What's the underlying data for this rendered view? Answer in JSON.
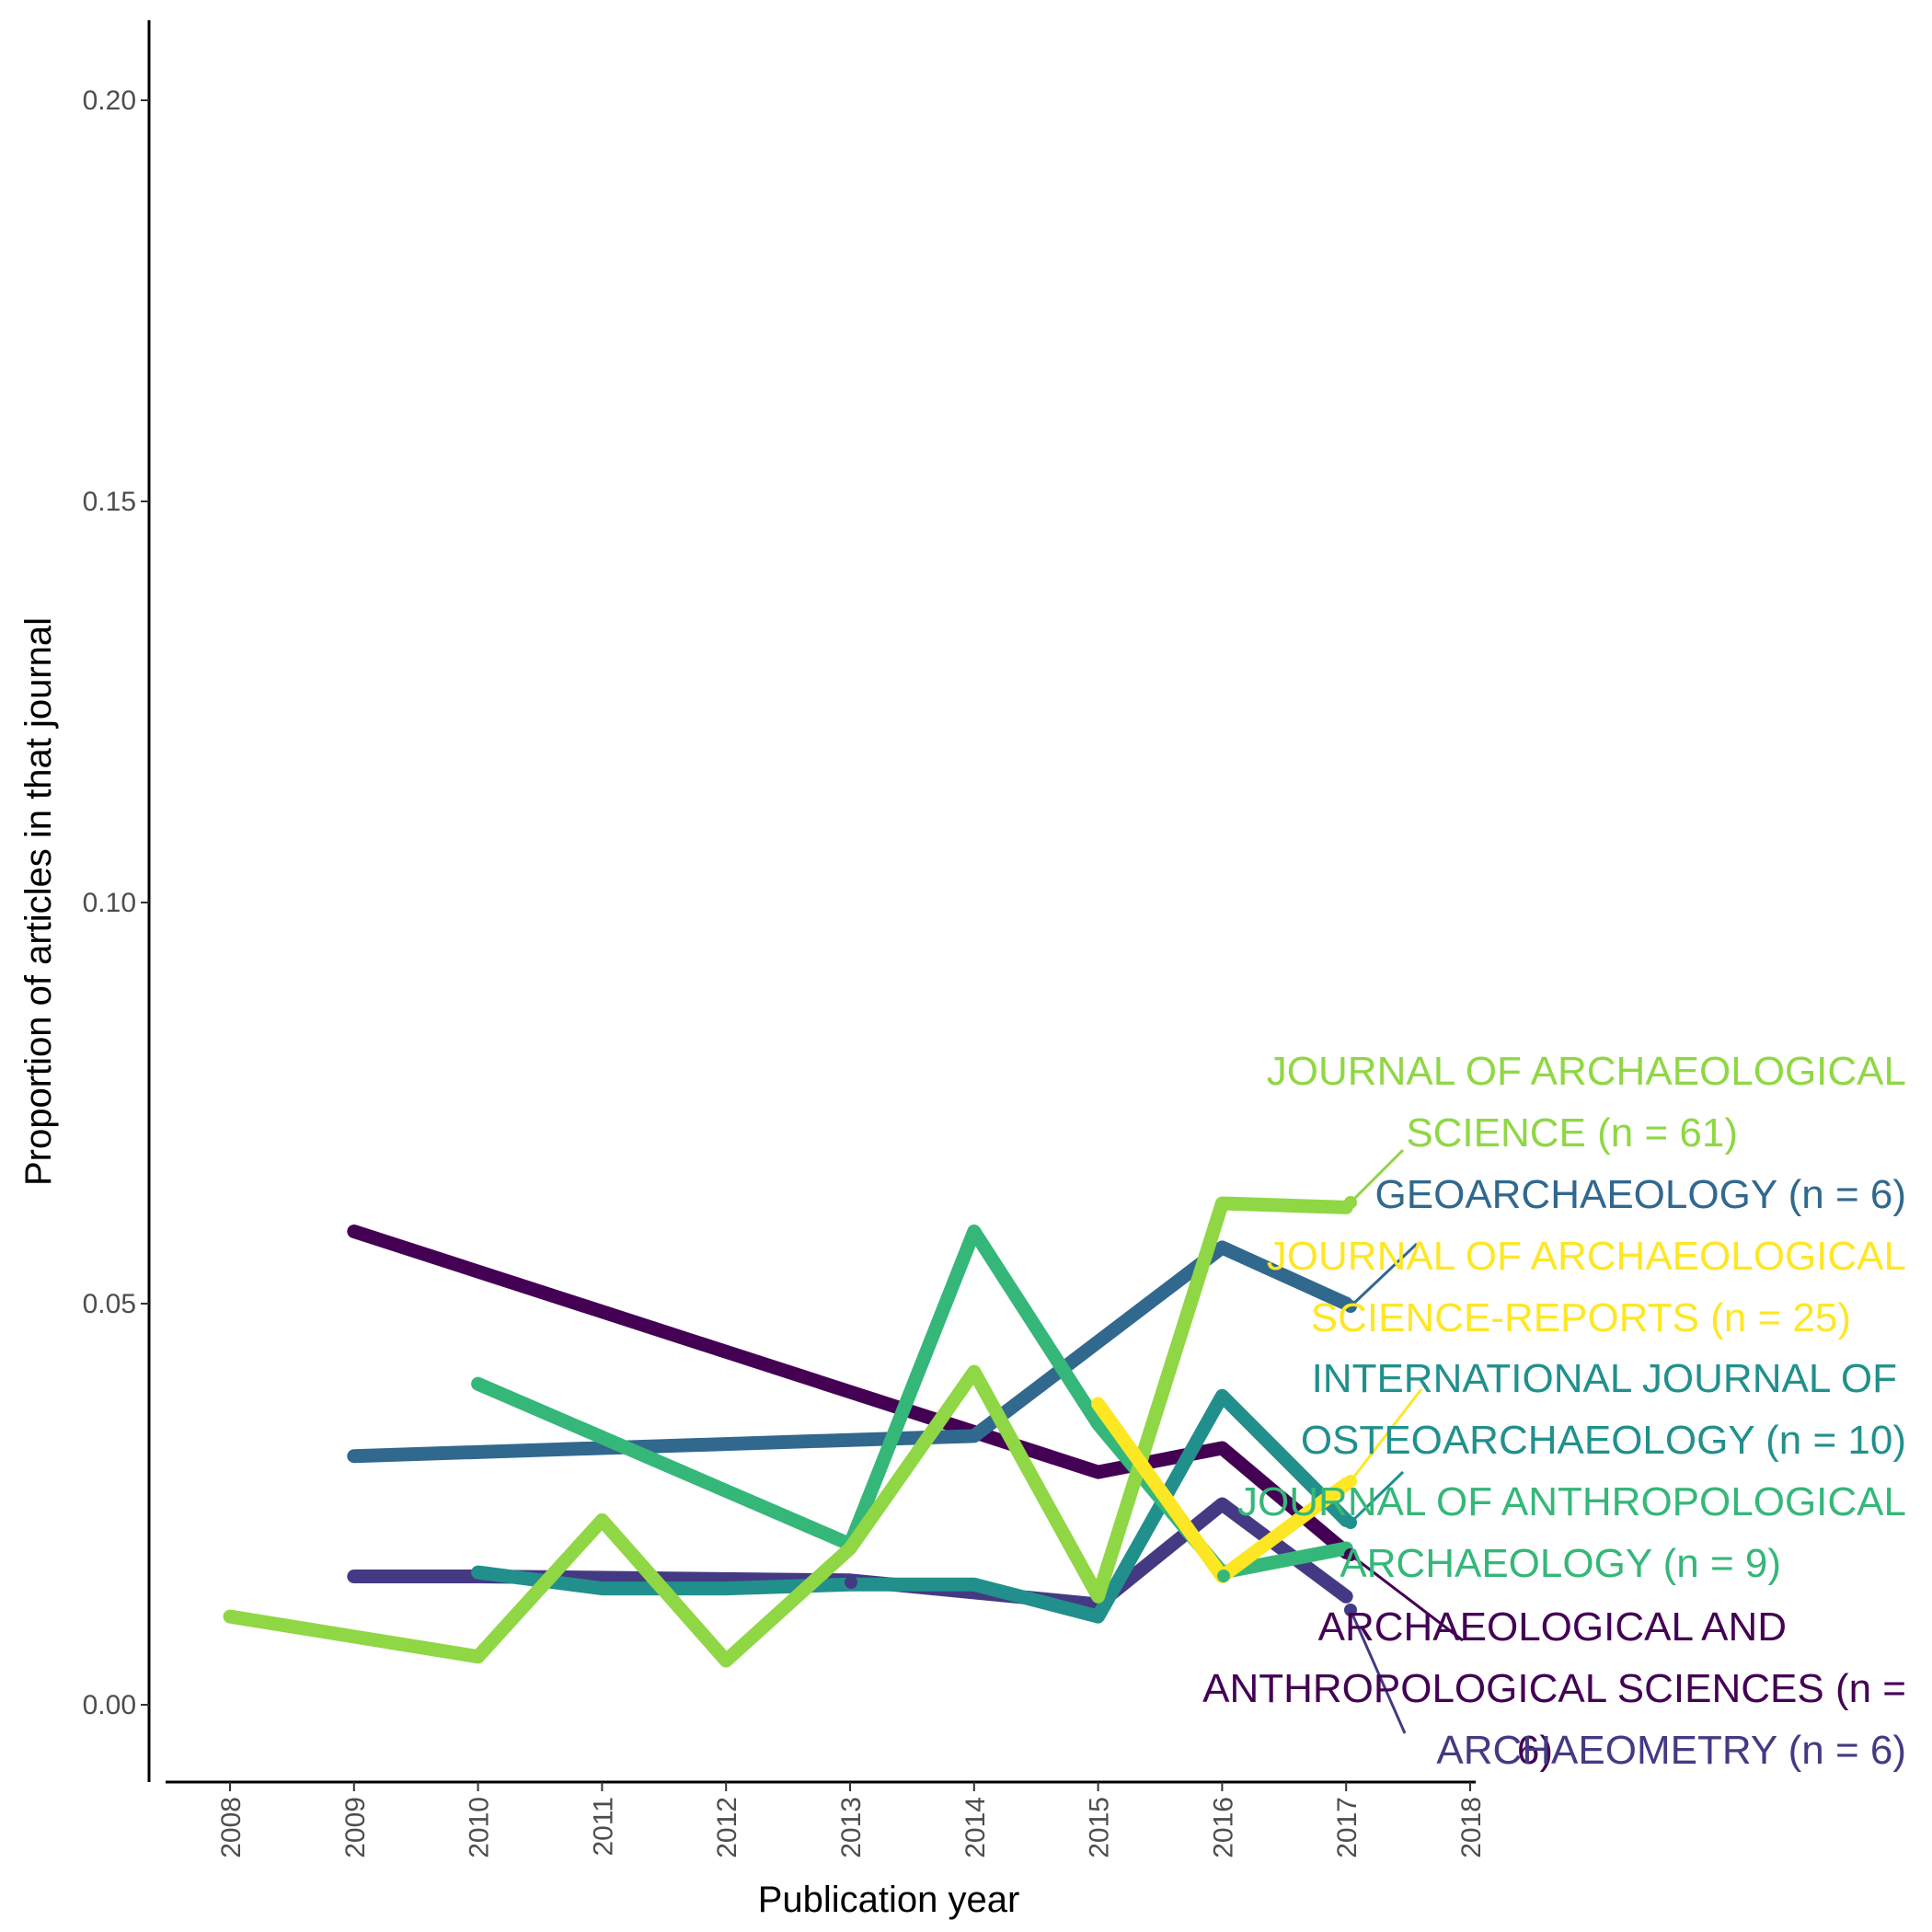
{
  "chart_data": {
    "type": "line",
    "xlabel": "Publication year",
    "ylabel": "Proportion of articles in that journal",
    "x_ticks": [
      "2008",
      "2009",
      "2010",
      "2011",
      "2012",
      "2013",
      "2014",
      "2015",
      "2016",
      "2017",
      "2018"
    ],
    "y_ticks": [
      "0.00",
      "0.05",
      "0.10",
      "0.15",
      "0.20"
    ],
    "xlim": [
      2008,
      2018
    ],
    "ylim": [
      -0.01,
      0.21
    ],
    "grid": false,
    "series": [
      {
        "name": "ARCHAEOLOGICAL AND ANTHROPOLOGICAL SCIENCES (n = 6)",
        "label_lines": [
          "ARCHAEOLOGICAL AND",
          "ANTHROPOLOGICAL SCIENCES (n =",
          "6)"
        ],
        "color": "#440154",
        "x": [
          2009,
          2014,
          2015,
          2016,
          2017
        ],
        "y": [
          0.059,
          0.034,
          0.029,
          0.032,
          0.019
        ]
      },
      {
        "name": "ARCHAEOMETRY (n = 6)",
        "label_lines": [
          "ARCHAEOMETRY (n = 6)"
        ],
        "color": "#443a83",
        "x": [
          2009,
          2010,
          2013,
          2014,
          2015,
          2016,
          2017
        ],
        "y": [
          0.016,
          0.016,
          0.0155,
          0.014,
          0.0125,
          0.025,
          0.0135
        ]
      },
      {
        "name": "GEOARCHAEOLOGY (n = 6)",
        "label_lines": [
          "GEOARCHAEOLOGY (n = 6)"
        ],
        "color": "#31688e",
        "x": [
          2009,
          2013,
          2014,
          2016,
          2017
        ],
        "y": [
          0.031,
          0.033,
          0.0335,
          0.057,
          0.05
        ]
      },
      {
        "name": "INTERNATIONAL JOURNAL OF OSTEOARCHAEOLOGY (n = 10)",
        "label_lines": [
          "INTERNATIONAL JOURNAL OF",
          "OSTEOARCHAEOLOGY (n = 10)"
        ],
        "color": "#21908c",
        "x": [
          2010,
          2011,
          2012,
          2013,
          2014,
          2015,
          2016,
          2017
        ],
        "y": [
          0.0165,
          0.0145,
          0.0145,
          0.015,
          0.015,
          0.011,
          0.0385,
          0.023
        ]
      },
      {
        "name": "JOURNAL OF ANTHROPOLOGICAL ARCHAEOLOGY (n = 9)",
        "label_lines": [
          "JOURNAL OF ANTHROPOLOGICAL",
          "ARCHAEOLOGY (n = 9)"
        ],
        "color": "#35b779",
        "x": [
          2010,
          2013,
          2014,
          2015,
          2016,
          2017
        ],
        "y": [
          0.04,
          0.02,
          0.059,
          0.035,
          0.0165,
          0.0195
        ]
      },
      {
        "name": "JOURNAL OF ARCHAEOLOGICAL SCIENCE (n = 61)",
        "label_lines": [
          "JOURNAL OF ARCHAEOLOGICAL",
          "SCIENCE (n = 61)"
        ],
        "color": "#8fd744",
        "x": [
          2008,
          2010,
          2011,
          2012,
          2013,
          2014,
          2015,
          2016,
          2017
        ],
        "y": [
          0.011,
          0.006,
          0.023,
          0.0055,
          0.0195,
          0.0415,
          0.0135,
          0.0625,
          0.062
        ]
      },
      {
        "name": "JOURNAL OF ARCHAEOLOGICAL SCIENCE-REPORTS (n = 25)",
        "label_lines": [
          "JOURNAL OF ARCHAEOLOGICAL",
          "SCIENCE-REPORTS (n = 25)"
        ],
        "color": "#fde725",
        "x": [
          2015,
          2016,
          2017
        ],
        "y": [
          0.0375,
          0.016,
          0.0275
        ]
      }
    ]
  }
}
